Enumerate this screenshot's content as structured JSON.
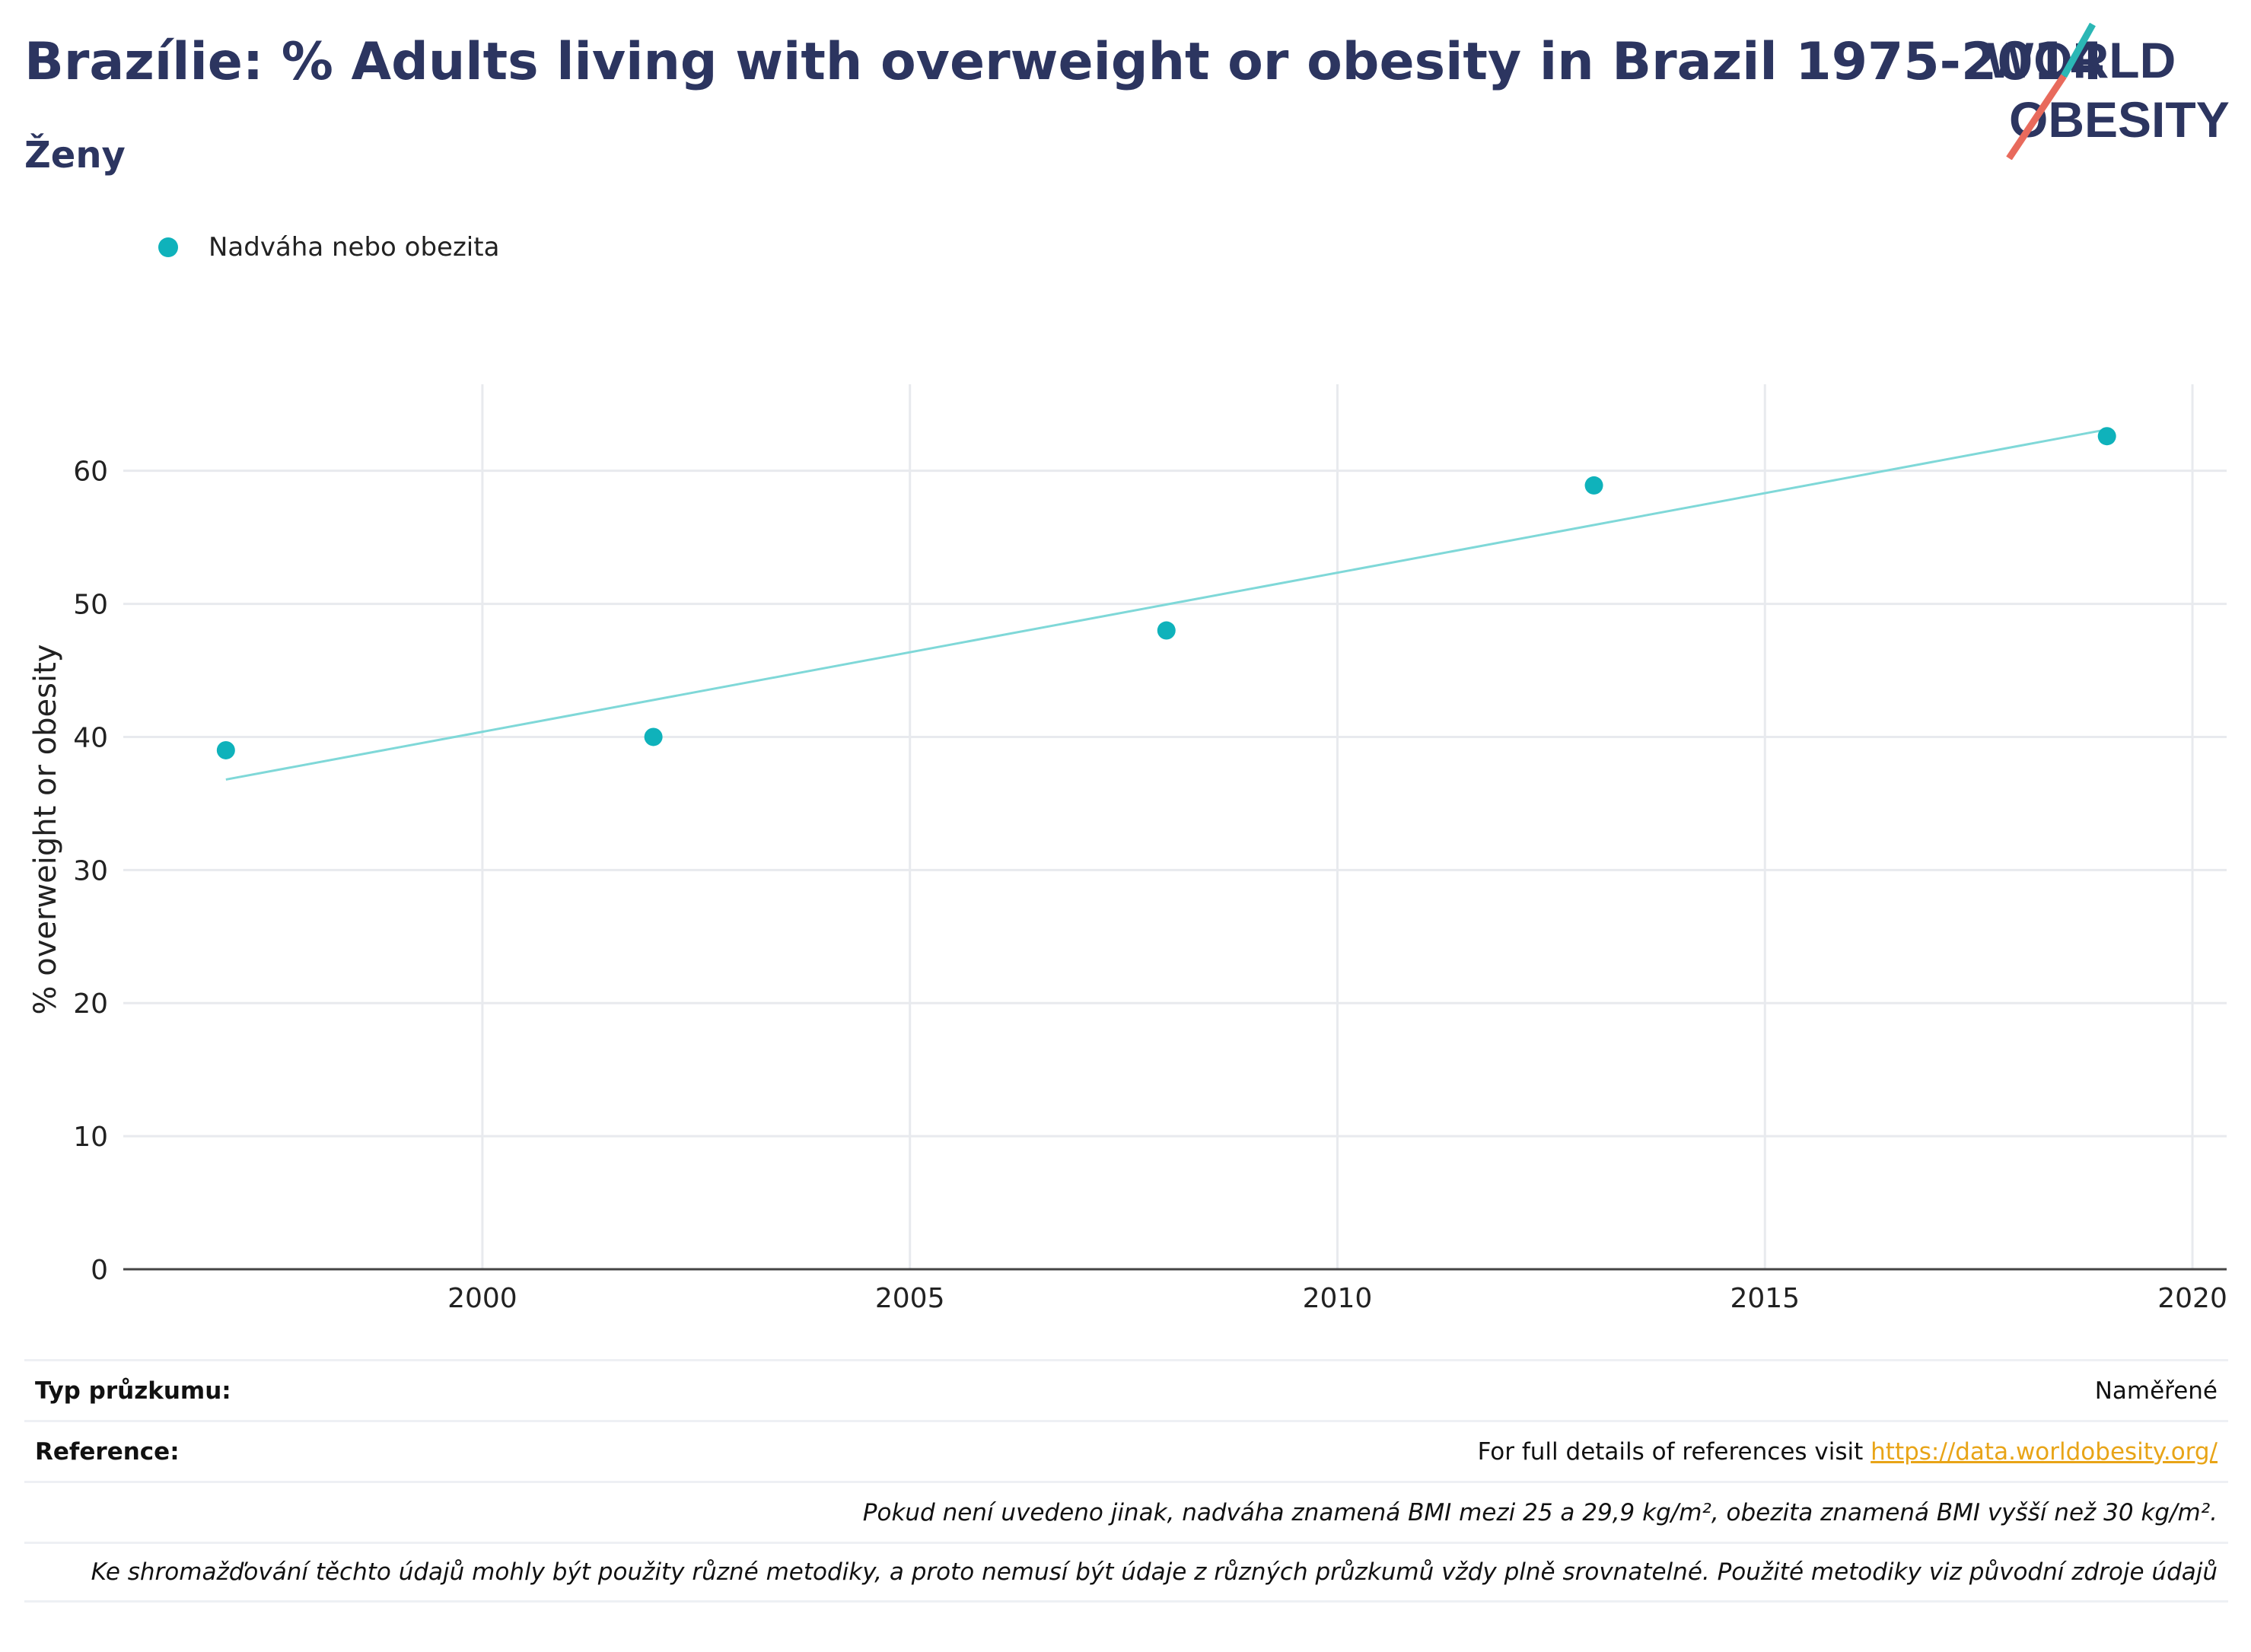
{
  "header": {
    "title": "Brazílie: % Adults living with overweight or obesity in Brazil 1975-2014",
    "subtitle": "Ženy"
  },
  "logo": {
    "line1": "WORLD",
    "line2": "OBESITY",
    "text_color": "#2c3560",
    "slash_teal": "#2bb7b5",
    "slash_red": "#e86a5c"
  },
  "legend": {
    "label": "Nadváha nebo obezita",
    "color": "#0fb2bb"
  },
  "chart_data": {
    "type": "scatter",
    "ylabel": "% overweight or obesity",
    "xlim": [
      1995.8,
      2020.4
    ],
    "ylim": [
      0,
      66.5
    ],
    "x_ticks": [
      2000,
      2005,
      2010,
      2015,
      2020
    ],
    "y_ticks": [
      0,
      10,
      20,
      30,
      40,
      50,
      60
    ],
    "grid": true,
    "legend_position": "top-left",
    "series": [
      {
        "name": "Nadváha nebo obezita",
        "color": "#0fb2bb",
        "points": [
          {
            "x": 1997,
            "y": 39
          },
          {
            "x": 2002,
            "y": 40
          },
          {
            "x": 2008,
            "y": 48
          },
          {
            "x": 2013,
            "y": 58.9
          },
          {
            "x": 2019,
            "y": 62.6
          }
        ]
      }
    ],
    "trendline": {
      "color": "#7fd8d8",
      "from": {
        "x": 1997,
        "y": 36.8
      },
      "to": {
        "x": 2019,
        "y": 63.1
      }
    }
  },
  "footer": {
    "survey_type_label": "Typ průzkumu:",
    "survey_type_value": "Naměřené",
    "reference_label": "Reference:",
    "reference_text": "For full details of references visit",
    "reference_link": "https://data.worldobesity.org/",
    "note_1": "Pokud není uvedeno jinak, nadváha znamená BMI mezi 25 a 29,9 kg/m², obezita znamená BMI vyšší než 30 kg/m².",
    "note_2": "Ke shromažďování těchto údajů mohly být použity různé metodiky, a proto nemusí být údaje z různých průzkumů vždy plně srovnatelné. Použité metodiky viz původní zdroje údajů"
  }
}
